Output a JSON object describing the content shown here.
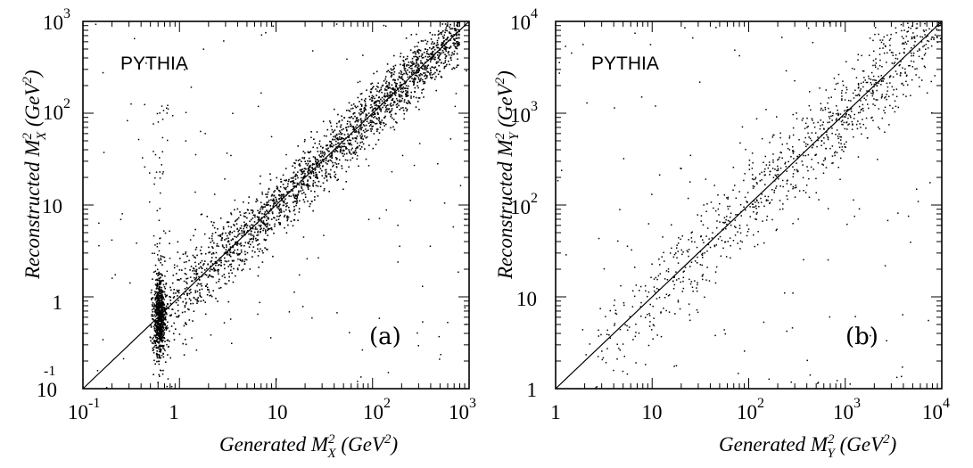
{
  "chart_data": [
    {
      "type": "scatter",
      "panel_label": "(a)",
      "generator_label": "PYTHIA",
      "xlabel": "Generated M_X^2 (GeV^2)",
      "ylabel": "Reconstructed M_X^2 (GeV^2)",
      "xscale": "log",
      "yscale": "log",
      "xlim": [
        0.1,
        1000
      ],
      "ylim": [
        0.1,
        1000
      ],
      "x_ticks": [
        {
          "base": "10",
          "exp": "-1"
        },
        {
          "base": "1",
          "exp": ""
        },
        {
          "base": "10",
          "exp": ""
        },
        {
          "base": "10",
          "exp": "2"
        },
        {
          "base": "10",
          "exp": "3"
        }
      ],
      "y_ticks": [
        {
          "base": "10",
          "exp": "-1"
        },
        {
          "base": "1",
          "exp": ""
        },
        {
          "base": "10",
          "exp": ""
        },
        {
          "base": "10",
          "exp": "2"
        },
        {
          "base": "10",
          "exp": "3"
        }
      ],
      "reference_line": {
        "type": "diagonal",
        "x": [
          0.1,
          1000
        ],
        "y": [
          0.1,
          1000
        ]
      },
      "distribution_notes": "about 3000 MC events scattered along the diagonal with spread of roughly 0.2 decades; dense vertical cluster near generated value 0.62 spanning reconstructed 0.15 to 2",
      "series": [
        {
          "points_sample": [
            [
              0.62,
              0.55
            ],
            [
              0.6,
              0.8
            ],
            [
              0.65,
              1.2
            ],
            [
              0.58,
              0.3
            ],
            [
              0.63,
              0.2
            ],
            [
              1.0,
              1.1
            ],
            [
              2.0,
              2.3
            ],
            [
              5.0,
              4.5
            ],
            [
              10.0,
              11.0
            ],
            [
              20.0,
              18.0
            ],
            [
              50.0,
              55.0
            ],
            [
              100.0,
              90.0
            ],
            [
              200.0,
              230.0
            ],
            [
              500.0,
              450.0
            ],
            [
              700.0,
              600.0
            ]
          ]
        }
      ]
    },
    {
      "type": "scatter",
      "panel_label": "(b)",
      "generator_label": "PYTHIA",
      "xlabel": "Generated M_Y^2 (GeV^2)",
      "ylabel": "Reconstructed M_Y^2 (GeV^2)",
      "xscale": "log",
      "yscale": "log",
      "xlim": [
        1,
        10000
      ],
      "ylim": [
        1,
        10000
      ],
      "x_ticks": [
        {
          "base": "1",
          "exp": ""
        },
        {
          "base": "10",
          "exp": ""
        },
        {
          "base": "10",
          "exp": "2"
        },
        {
          "base": "10",
          "exp": "3"
        },
        {
          "base": "10",
          "exp": "4"
        }
      ],
      "y_ticks": [
        {
          "base": "1",
          "exp": ""
        },
        {
          "base": "10",
          "exp": ""
        },
        {
          "base": "10",
          "exp": "2"
        },
        {
          "base": "10",
          "exp": "3"
        },
        {
          "base": "10",
          "exp": "4"
        }
      ],
      "reference_line": {
        "type": "diagonal",
        "x": [
          1,
          10000
        ],
        "y": [
          1,
          10000
        ]
      },
      "distribution_notes": "about 1000 sparse MC events from generated 3 to 10000 scattered along the diagonal with spread of roughly 0.3 decades, plus scattered outliers",
      "series": [
        {
          "points_sample": [
            [
              5.0,
              4.0
            ],
            [
              10.0,
              12.0
            ],
            [
              30.0,
              25.0
            ],
            [
              50.0,
              60.0
            ],
            [
              100.0,
              110.0
            ],
            [
              300.0,
              280.0
            ],
            [
              1000.0,
              900.0
            ],
            [
              3000.0,
              3500.0
            ],
            [
              5000.0,
              4500.0
            ],
            [
              8000.0,
              7000.0
            ]
          ]
        }
      ]
    }
  ]
}
